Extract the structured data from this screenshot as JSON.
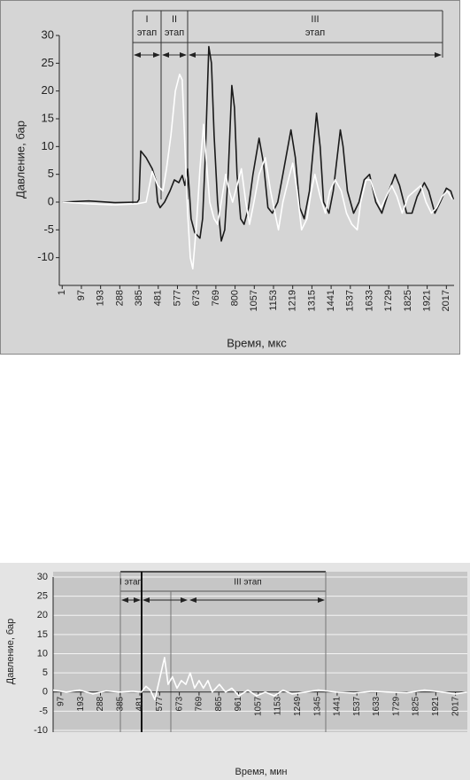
{
  "chart_data": [
    {
      "type": "line",
      "xlabel": "Время, мкс",
      "ylabel": "Давление, бар",
      "stages": [
        [
          "I",
          "этап"
        ],
        [
          "II",
          "этап"
        ],
        [
          "III",
          "этап"
        ]
      ],
      "xlim": [
        -0.15,
        20.4
      ],
      "xticks": [
        {
          "value": 0,
          "label": "1"
        },
        {
          "value": 1,
          "label": "97"
        },
        {
          "value": 2,
          "label": "193"
        },
        {
          "value": 3,
          "label": "288"
        },
        {
          "value": 4,
          "label": "385"
        },
        {
          "value": 5,
          "label": "481"
        },
        {
          "value": 6,
          "label": "577"
        },
        {
          "value": 7,
          "label": "673"
        },
        {
          "value": 8,
          "label": "769"
        },
        {
          "value": 9,
          "label": "800"
        },
        {
          "value": 10,
          "label": "1057"
        },
        {
          "value": 11,
          "label": "1153"
        },
        {
          "value": 12,
          "label": "1219"
        },
        {
          "value": 13,
          "label": "1315"
        },
        {
          "value": 14,
          "label": "1441"
        },
        {
          "value": 15,
          "label": "1537"
        },
        {
          "value": 16,
          "label": "1633"
        },
        {
          "value": 17,
          "label": "1729"
        },
        {
          "value": 18,
          "label": "1825"
        },
        {
          "value": 19,
          "label": "1921"
        },
        {
          "value": 20,
          "label": "2017"
        }
      ],
      "ylim": [
        -15,
        30
      ],
      "yticks": [
        -10,
        -5,
        0,
        5,
        10,
        15,
        20,
        25,
        30
      ],
      "grid": false,
      "series": [
        {
          "color": "#1a1a1a",
          "x": [
            0,
            1.38,
            2.76,
            3.91,
            4.0,
            4.09,
            4.37,
            4.69,
            4.87,
            4.97,
            5.1,
            5.33,
            5.61,
            5.84,
            6.07,
            6.25,
            6.39,
            6.53,
            6.62,
            6.71,
            6.9,
            7.17,
            7.31,
            7.45,
            7.63,
            7.77,
            7.91,
            8.09,
            8.28,
            8.46,
            8.64,
            8.83,
            8.97,
            9.1,
            9.29,
            9.47,
            9.7,
            9.93,
            10.25,
            10.48,
            10.71,
            10.94,
            11.22,
            11.49,
            11.91,
            12.14,
            12.37,
            12.6,
            12.87,
            13.24,
            13.43,
            13.61,
            13.89,
            14.11,
            14.48,
            14.62,
            14.85,
            15.17,
            15.45,
            15.72,
            16.0,
            16.32,
            16.64,
            17.01,
            17.33,
            17.56,
            17.93,
            18.21,
            18.48,
            18.85,
            19.08,
            19.4,
            19.68,
            20.0,
            20.23,
            20.37
          ],
          "values": [
            0,
            0.2,
            -0.1,
            0,
            0.5,
            9.2,
            8,
            6,
            4,
            0,
            -1,
            0,
            2,
            4,
            3.5,
            4.8,
            3,
            6,
            2,
            -3,
            -5.5,
            -6.5,
            -3,
            8,
            28,
            25,
            12,
            0,
            -7,
            -5,
            5,
            21,
            17,
            5,
            -3,
            -4,
            -1,
            5,
            11.5,
            7,
            -1,
            -2,
            0,
            5,
            13,
            8,
            -1,
            -3,
            2,
            16,
            10,
            0,
            -2,
            2,
            13,
            10,
            2,
            -2,
            0,
            4,
            5,
            0,
            -2,
            2,
            5,
            3,
            -2,
            -2,
            1,
            3.5,
            2,
            -2,
            0,
            2.5,
            2,
            0.5
          ]
        },
        {
          "color": "#ffffff",
          "x": [
            0,
            1.38,
            2.76,
            3.91,
            4.37,
            4.69,
            4.97,
            5.24,
            5.43,
            5.66,
            5.89,
            6.11,
            6.25,
            6.39,
            6.53,
            6.67,
            6.8,
            6.99,
            7.17,
            7.36,
            7.49,
            7.68,
            7.91,
            8.09,
            8.28,
            8.51,
            8.69,
            8.87,
            9.1,
            9.33,
            9.56,
            9.75,
            9.98,
            10.25,
            10.57,
            10.85,
            11.08,
            11.26,
            11.49,
            11.77,
            12.0,
            12.23,
            12.46,
            12.74,
            12.97,
            13.15,
            13.43,
            13.7,
            13.93,
            14.21,
            14.53,
            14.8,
            15.08,
            15.36,
            15.54,
            15.82,
            16.05,
            16.32,
            16.6,
            16.87,
            17.15,
            17.43,
            17.7,
            18.02,
            18.34,
            18.67,
            18.94,
            19.22,
            19.49,
            19.77,
            20.05,
            20.32
          ],
          "values": [
            0,
            -0.3,
            -0.5,
            -0.3,
            0,
            5.5,
            3,
            2,
            6,
            12,
            20,
            23,
            22,
            10,
            -2,
            -10,
            -12,
            -4,
            6,
            14,
            8,
            0,
            -3,
            -4,
            0,
            5,
            2,
            0,
            3,
            6,
            0,
            -4,
            0,
            5,
            8,
            2,
            -2,
            -5,
            0,
            4,
            7,
            2,
            -5,
            -3,
            2,
            5,
            1,
            -2,
            2,
            4,
            2,
            -2,
            -4,
            -5,
            0,
            4,
            4,
            1,
            -1,
            1,
            3,
            1,
            -2,
            1,
            2,
            3,
            0,
            -2,
            -1,
            1,
            2,
            0.5
          ]
        }
      ]
    },
    {
      "type": "line",
      "xlabel": "Время, мин",
      "ylabel": "Давление, бар",
      "stages": [
        "I этап",
        "III этап"
      ],
      "xlim": [
        0.6,
        21.6
      ],
      "xticks": [
        {
          "value": 1,
          "label": "97"
        },
        {
          "value": 2,
          "label": "193"
        },
        {
          "value": 3,
          "label": "288"
        },
        {
          "value": 4,
          "label": "385"
        },
        {
          "value": 5,
          "label": "481"
        },
        {
          "value": 6,
          "label": "577"
        },
        {
          "value": 7,
          "label": "673"
        },
        {
          "value": 8,
          "label": "769"
        },
        {
          "value": 9,
          "label": "865"
        },
        {
          "value": 10,
          "label": "961"
        },
        {
          "value": 11,
          "label": "1057"
        },
        {
          "value": 12,
          "label": "1153"
        },
        {
          "value": 13,
          "label": "1249"
        },
        {
          "value": 14,
          "label": "1345"
        },
        {
          "value": 15,
          "label": "1441"
        },
        {
          "value": 16,
          "label": "1537"
        },
        {
          "value": 17,
          "label": "1633"
        },
        {
          "value": 18,
          "label": "1729"
        },
        {
          "value": 19,
          "label": "1825"
        },
        {
          "value": 20,
          "label": "1921"
        },
        {
          "value": 21,
          "label": "2017"
        }
      ],
      "ylim": [
        -10,
        30
      ],
      "yticks": [
        -10,
        -5,
        0,
        5,
        10,
        15,
        20,
        25,
        30
      ],
      "grid": true,
      "series": [
        {
          "color": "#ffffff",
          "x": [
            0.6,
            1.27,
            1.95,
            2.62,
            3.29,
            3.96,
            4.64,
            5.08,
            5.31,
            5.53,
            5.76,
            5.98,
            6.25,
            6.43,
            6.65,
            6.88,
            7.1,
            7.33,
            7.55,
            7.77,
            8.0,
            8.22,
            8.45,
            8.67,
            9.03,
            9.34,
            9.66,
            10.02,
            10.47,
            10.91,
            11.36,
            11.81,
            12.26,
            12.71,
            13.38,
            14.05,
            14.95,
            15.85,
            16.74,
            17.64,
            18.54,
            19.43,
            20.33,
            21.0,
            21.59
          ],
          "values": [
            0.5,
            0,
            0.5,
            -0.5,
            0.3,
            0,
            0.2,
            0,
            1.5,
            0.5,
            -2,
            3,
            9,
            2,
            4,
            1,
            3,
            2,
            5,
            1,
            3,
            1,
            3,
            0,
            2,
            0,
            1,
            -1,
            0.5,
            -1,
            0,
            -1,
            0.5,
            -0.5,
            0,
            0.5,
            0,
            -0.3,
            0.2,
            0,
            -0.2,
            0.5,
            0,
            -0.5,
            0
          ]
        }
      ]
    }
  ]
}
